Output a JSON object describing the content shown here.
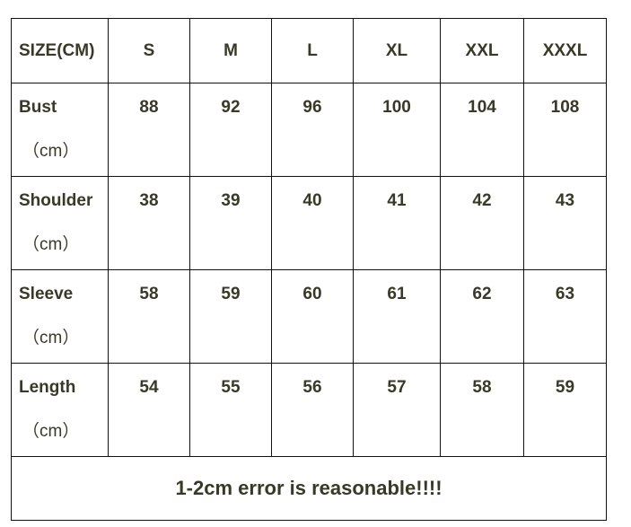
{
  "header": {
    "label": "SIZE(CM)",
    "sizes": [
      "S",
      "M",
      "L",
      "XL",
      "XXL",
      "XXXL"
    ]
  },
  "rows": [
    {
      "label": "Bust",
      "unit": "（cm）",
      "values": [
        "88",
        "92",
        "96",
        "100",
        "104",
        "108"
      ]
    },
    {
      "label": "Shoulder",
      "unit": "（cm）",
      "values": [
        "38",
        "39",
        "40",
        "41",
        "42",
        "43"
      ]
    },
    {
      "label": "Sleeve",
      "unit": "（cm）",
      "values": [
        "58",
        "59",
        "60",
        "61",
        "62",
        "63"
      ]
    },
    {
      "label": "Length",
      "unit": "（cm）",
      "values": [
        "54",
        "55",
        "56",
        "57",
        "58",
        "59"
      ]
    }
  ],
  "footer": "1-2cm error is reasonable!!!!"
}
